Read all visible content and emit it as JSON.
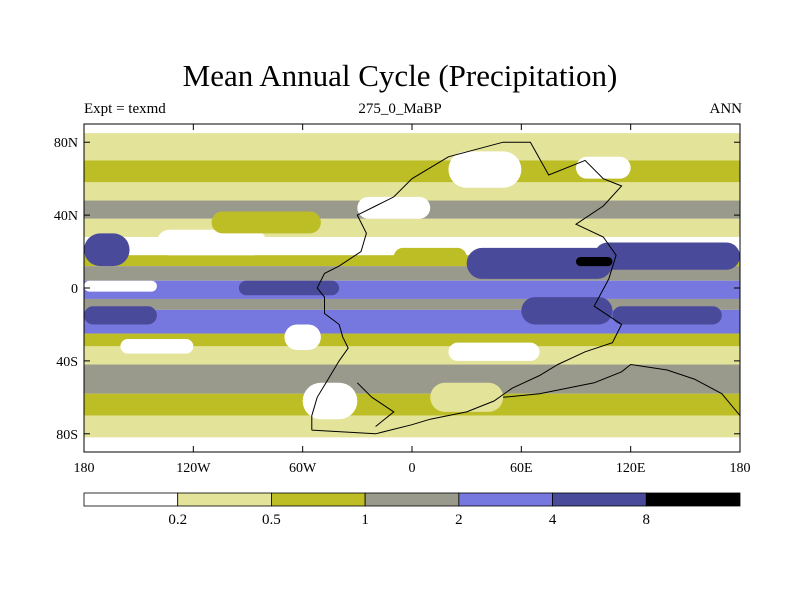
{
  "colors": {
    "levels": [
      "#ffffff",
      "#e3e39a",
      "#bdbd25",
      "#9a9a8c",
      "#7777e0",
      "#4a4a9a",
      "#000000"
    ],
    "frame": "#000000"
  },
  "chart_data": {
    "type": "heatmap",
    "title": "Mean Annual Cycle (Precipitation)",
    "subtitle_left": "Expt = texmd",
    "subtitle_center": "275_0_MaBP",
    "subtitle_right": "ANN",
    "xlabel": "",
    "ylabel": "",
    "xlim": [
      -180,
      180
    ],
    "ylim": [
      -90,
      90
    ],
    "x_ticks": [
      {
        "value": -180,
        "label": "180"
      },
      {
        "value": -120,
        "label": "120W"
      },
      {
        "value": -60,
        "label": "60W"
      },
      {
        "value": 0,
        "label": "0"
      },
      {
        "value": 60,
        "label": "60E"
      },
      {
        "value": 120,
        "label": "120E"
      },
      {
        "value": 180,
        "label": "180"
      }
    ],
    "y_ticks": [
      {
        "value": 80,
        "label": "80N"
      },
      {
        "value": 40,
        "label": "40N"
      },
      {
        "value": 0,
        "label": "0"
      },
      {
        "value": -40,
        "label": "40S"
      },
      {
        "value": -80,
        "label": "80S"
      }
    ],
    "colorbar": {
      "thresholds": [
        "0.2",
        "0.5",
        "1",
        "2",
        "4",
        "8"
      ],
      "bins": 7
    },
    "zonal_bands": [
      {
        "lat": [
          85,
          90
        ],
        "level": 0
      },
      {
        "lat": [
          70,
          85
        ],
        "level": 1
      },
      {
        "lat": [
          58,
          70
        ],
        "level": 2
      },
      {
        "lat": [
          48,
          58
        ],
        "level": 1
      },
      {
        "lat": [
          38,
          48
        ],
        "level": 3
      },
      {
        "lat": [
          28,
          38
        ],
        "level": 1
      },
      {
        "lat": [
          18,
          28
        ],
        "level": 0
      },
      {
        "lat": [
          12,
          18
        ],
        "level": 2
      },
      {
        "lat": [
          4,
          12
        ],
        "level": 3
      },
      {
        "lat": [
          -6,
          4
        ],
        "level": 4
      },
      {
        "lat": [
          -12,
          -6
        ],
        "level": 3
      },
      {
        "lat": [
          -25,
          -12
        ],
        "level": 4
      },
      {
        "lat": [
          -32,
          -25
        ],
        "level": 2
      },
      {
        "lat": [
          -42,
          -32
        ],
        "level": 1
      },
      {
        "lat": [
          -58,
          -42
        ],
        "level": 3
      },
      {
        "lat": [
          -70,
          -58
        ],
        "level": 2
      },
      {
        "lat": [
          -82,
          -70
        ],
        "level": 1
      },
      {
        "lat": [
          -90,
          -82
        ],
        "level": 0
      }
    ],
    "patches": [
      {
        "lon": [
          -180,
          -155
        ],
        "lat": [
          12,
          30
        ],
        "level": 5
      },
      {
        "lon": [
          -140,
          -80
        ],
        "lat": [
          18,
          32
        ],
        "level": 0
      },
      {
        "lon": [
          -110,
          -50
        ],
        "lat": [
          30,
          42
        ],
        "level": 2
      },
      {
        "lon": [
          -30,
          10
        ],
        "lat": [
          38,
          50
        ],
        "level": 0
      },
      {
        "lon": [
          20,
          60
        ],
        "lat": [
          55,
          75
        ],
        "level": 0
      },
      {
        "lon": [
          90,
          120
        ],
        "lat": [
          60,
          72
        ],
        "level": 0
      },
      {
        "lon": [
          -180,
          -140
        ],
        "lat": [
          -2,
          4
        ],
        "level": 0
      },
      {
        "lon": [
          -95,
          -40
        ],
        "lat": [
          -4,
          4
        ],
        "level": 5
      },
      {
        "lon": [
          -10,
          30
        ],
        "lat": [
          12,
          22
        ],
        "level": 2
      },
      {
        "lon": [
          30,
          110
        ],
        "lat": [
          5,
          22
        ],
        "level": 5
      },
      {
        "lon": [
          100,
          180
        ],
        "lat": [
          10,
          25
        ],
        "level": 5
      },
      {
        "lon": [
          60,
          110
        ],
        "lat": [
          -20,
          -5
        ],
        "level": 5
      },
      {
        "lon": [
          110,
          170
        ],
        "lat": [
          -20,
          -10
        ],
        "level": 5
      },
      {
        "lon": [
          -180,
          -140
        ],
        "lat": [
          -20,
          -10
        ],
        "level": 5
      },
      {
        "lon": [
          -70,
          -50
        ],
        "lat": [
          -34,
          -20
        ],
        "level": 0
      },
      {
        "lon": [
          -160,
          -120
        ],
        "lat": [
          -36,
          -28
        ],
        "level": 0
      },
      {
        "lon": [
          20,
          70
        ],
        "lat": [
          -40,
          -30
        ],
        "level": 0
      },
      {
        "lon": [
          -60,
          -30
        ],
        "lat": [
          -72,
          -52
        ],
        "level": 0
      },
      {
        "lon": [
          10,
          50
        ],
        "lat": [
          -68,
          -52
        ],
        "level": 1
      },
      {
        "lon": [
          90,
          110
        ],
        "lat": [
          12,
          17
        ],
        "level": 6
      }
    ],
    "continent_outline": [
      [
        -55,
        -78
      ],
      [
        -55,
        -70
      ],
      [
        -52,
        -60
      ],
      [
        -46,
        -50
      ],
      [
        -40,
        -40
      ],
      [
        -35,
        -33
      ],
      [
        -38,
        -27
      ],
      [
        -40,
        -20
      ],
      [
        -48,
        -14
      ],
      [
        -48,
        -5
      ],
      [
        -52,
        0
      ],
      [
        -48,
        8
      ],
      [
        -40,
        12
      ],
      [
        -28,
        20
      ],
      [
        -25,
        30
      ],
      [
        -30,
        40
      ],
      [
        -20,
        45
      ],
      [
        -10,
        50
      ],
      [
        0,
        60
      ],
      [
        20,
        72
      ],
      [
        50,
        80
      ],
      [
        65,
        80
      ],
      [
        75,
        62
      ],
      [
        95,
        70
      ],
      [
        105,
        60
      ],
      [
        115,
        56
      ],
      [
        105,
        45
      ],
      [
        90,
        35
      ],
      [
        105,
        28
      ],
      [
        112,
        18
      ],
      [
        108,
        5
      ],
      [
        100,
        -10
      ],
      [
        115,
        -20
      ],
      [
        110,
        -30
      ],
      [
        95,
        -35
      ],
      [
        80,
        -42
      ],
      [
        70,
        -48
      ],
      [
        55,
        -55
      ],
      [
        45,
        -62
      ],
      [
        30,
        -68
      ],
      [
        10,
        -72
      ],
      [
        0,
        -75
      ],
      [
        -20,
        -80
      ],
      [
        -55,
        -78
      ]
    ],
    "continent_interior": [
      [
        -20,
        -76
      ],
      [
        -10,
        -68
      ],
      [
        -22,
        -60
      ],
      [
        -30,
        -52
      ]
    ],
    "south_outline": [
      [
        50,
        -60
      ],
      [
        70,
        -58
      ],
      [
        100,
        -52
      ],
      [
        115,
        -46
      ],
      [
        120,
        -42
      ],
      [
        140,
        -45
      ],
      [
        155,
        -50
      ],
      [
        170,
        -58
      ],
      [
        180,
        -70
      ]
    ]
  }
}
